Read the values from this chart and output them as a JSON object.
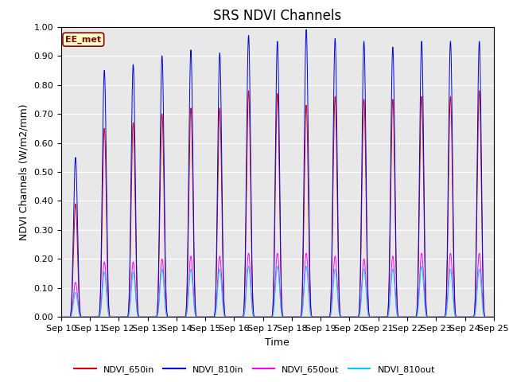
{
  "title": "SRS NDVI Channels",
  "xlabel": "Time",
  "ylabel": "NDVI Channels (W/m2/mm)",
  "ylim": [
    0.0,
    1.0
  ],
  "yticks": [
    0.0,
    0.1,
    0.2,
    0.3,
    0.4,
    0.5,
    0.6,
    0.7,
    0.8,
    0.9,
    1.0
  ],
  "xtick_labels": [
    "Sep 10",
    "Sep 11",
    "Sep 12",
    "Sep 13",
    "Sep 14",
    "Sep 15",
    "Sep 16",
    "Sep 17",
    "Sep 18",
    "Sep 19",
    "Sep 20",
    "Sep 21",
    "Sep 22",
    "Sep 23",
    "Sep 24",
    "Sep 25"
  ],
  "color_650in": "#dd0000",
  "color_810in": "#0000dd",
  "color_650out": "#ff00ff",
  "color_810out": "#00ccff",
  "legend_label_650in": "NDVI_650in",
  "legend_label_810in": "NDVI_810in",
  "legend_label_650out": "NDVI_650out",
  "legend_label_810out": "NDVI_810out",
  "annotation_text": "EE_met",
  "background_color": "#e8e8e8",
  "title_fontsize": 12,
  "axis_label_fontsize": 9,
  "tick_fontsize": 8,
  "peaks_810in": [
    0.55,
    0.85,
    0.87,
    0.9,
    0.92,
    0.91,
    0.97,
    0.95,
    0.99,
    0.96,
    0.95,
    0.93,
    0.95,
    0.95,
    0.95
  ],
  "peaks_650in": [
    0.39,
    0.65,
    0.67,
    0.7,
    0.72,
    0.72,
    0.78,
    0.77,
    0.73,
    0.76,
    0.75,
    0.75,
    0.76,
    0.76,
    0.78
  ],
  "peaks_650out": [
    0.12,
    0.19,
    0.19,
    0.2,
    0.21,
    0.21,
    0.22,
    0.22,
    0.22,
    0.21,
    0.2,
    0.21,
    0.22,
    0.22,
    0.22
  ],
  "peaks_810out": [
    0.085,
    0.155,
    0.155,
    0.165,
    0.165,
    0.165,
    0.175,
    0.175,
    0.175,
    0.165,
    0.165,
    0.165,
    0.175,
    0.165,
    0.165
  ]
}
